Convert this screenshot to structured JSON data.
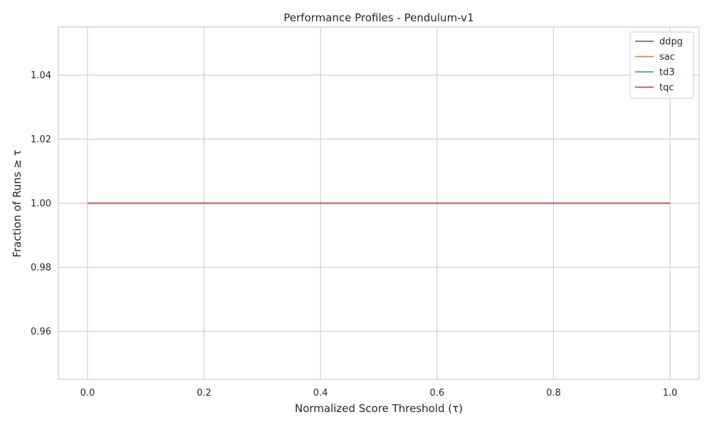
{
  "chart_data": {
    "type": "line",
    "title": "Performance Profiles - Pendulum-v1",
    "xlabel": "Normalized Score Threshold (τ)",
    "ylabel": "Fraction of Runs ≥ τ",
    "xlim": [
      -0.05,
      1.05
    ],
    "ylim": [
      0.945,
      1.055
    ],
    "xticks": [
      0.0,
      0.2,
      0.4,
      0.6,
      0.8,
      1.0
    ],
    "xtick_labels": [
      "0.0",
      "0.2",
      "0.4",
      "0.6",
      "0.8",
      "1.0"
    ],
    "yticks": [
      0.96,
      0.98,
      1.0,
      1.02,
      1.04
    ],
    "ytick_labels": [
      "0.96",
      "0.98",
      "1.00",
      "1.02",
      "1.04"
    ],
    "grid": true,
    "legend_position": "top-right",
    "series": [
      {
        "name": "ddpg",
        "color": "#4c72b0",
        "x": [
          0.0,
          1.0
        ],
        "y": [
          1.0,
          1.0
        ]
      },
      {
        "name": "sac",
        "color": "#dd8452",
        "x": [
          0.0,
          1.0
        ],
        "y": [
          1.0,
          1.0
        ]
      },
      {
        "name": "td3",
        "color": "#55a868",
        "x": [
          0.0,
          1.0
        ],
        "y": [
          1.0,
          1.0
        ]
      },
      {
        "name": "tqc",
        "color": "#c44e52",
        "x": [
          0.0,
          1.0
        ],
        "y": [
          1.0,
          1.0
        ]
      }
    ]
  }
}
